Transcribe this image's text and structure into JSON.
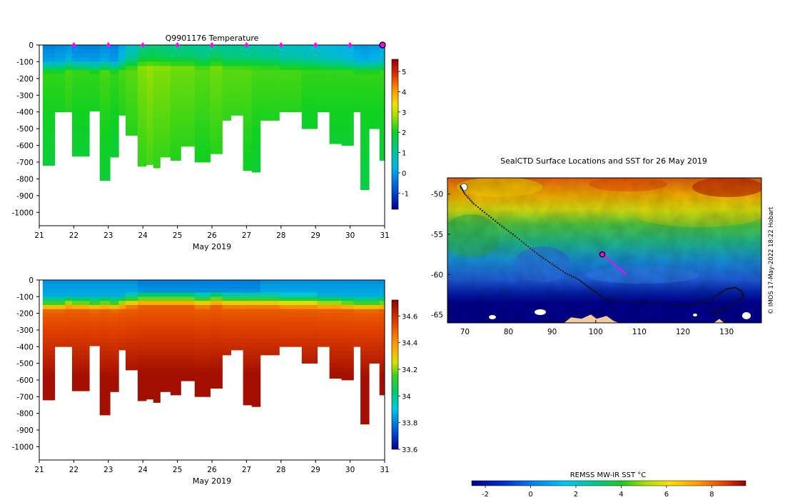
{
  "chart_data": [
    {
      "type": "heatmap",
      "title": "Q9901176  Temperature",
      "xlabel": "May 2019",
      "ylabel": "",
      "xlim": [
        21,
        31
      ],
      "ylim": [
        -1080,
        0
      ],
      "xticks": [
        "21",
        "22",
        "23",
        "24",
        "25",
        "26",
        "27",
        "28",
        "29",
        "30",
        "31"
      ],
      "yticks": [
        "0",
        "-100",
        "-200",
        "-300",
        "-400",
        "-500",
        "-600",
        "-700",
        "-800",
        "-900",
        "-1000"
      ],
      "colorbar": {
        "ticks": [
          "-1",
          "0",
          "1",
          "2",
          "3",
          "4",
          "5"
        ],
        "range": [
          -1.8,
          5.6
        ]
      },
      "surface_markers": [
        22,
        23,
        24,
        25,
        26,
        27,
        28,
        29,
        30
      ],
      "current_profile": 31,
      "profiles": [
        {
          "t": 21.1,
          "depth": 720,
          "surf": -0.3,
          "therm": 130,
          "deep": 1.9
        },
        {
          "t": 21.45,
          "depth": 400,
          "surf": -0.2,
          "therm": 130,
          "deep": 1.9
        },
        {
          "t": 21.75,
          "depth": 400,
          "surf": -0.1,
          "therm": 120,
          "deep": 2.0
        },
        {
          "t": 21.95,
          "depth": 665,
          "surf": -0.3,
          "therm": 125,
          "deep": 1.9
        },
        {
          "t": 22.45,
          "depth": 395,
          "surf": -0.3,
          "therm": 130,
          "deep": 1.9
        },
        {
          "t": 22.75,
          "depth": 810,
          "surf": -0.2,
          "therm": 125,
          "deep": 2.0
        },
        {
          "t": 23.05,
          "depth": 670,
          "surf": -0.3,
          "therm": 130,
          "deep": 1.9
        },
        {
          "t": 23.3,
          "depth": 420,
          "surf": 0.1,
          "therm": 120,
          "deep": 2.0
        },
        {
          "t": 23.5,
          "depth": 540,
          "surf": 0.6,
          "therm": 110,
          "deep": 2.1
        },
        {
          "t": 23.85,
          "depth": 725,
          "surf": 1.2,
          "therm": 100,
          "deep": 2.3
        },
        {
          "t": 24.1,
          "depth": 715,
          "surf": 1.3,
          "therm": 100,
          "deep": 2.4
        },
        {
          "t": 24.3,
          "depth": 735,
          "surf": 1.3,
          "therm": 100,
          "deep": 2.3
        },
        {
          "t": 24.5,
          "depth": 670,
          "surf": 1.2,
          "therm": 100,
          "deep": 2.3
        },
        {
          "t": 24.8,
          "depth": 690,
          "surf": 1.1,
          "therm": 100,
          "deep": 2.2
        },
        {
          "t": 25.1,
          "depth": 605,
          "surf": 1.1,
          "therm": 100,
          "deep": 2.2
        },
        {
          "t": 25.5,
          "depth": 700,
          "surf": 1.0,
          "therm": 110,
          "deep": 2.1
        },
        {
          "t": 25.95,
          "depth": 650,
          "surf": 1.1,
          "therm": 100,
          "deep": 2.2
        },
        {
          "t": 26.3,
          "depth": 450,
          "surf": 1.0,
          "therm": 110,
          "deep": 2.1
        },
        {
          "t": 26.55,
          "depth": 420,
          "surf": 1.0,
          "therm": 110,
          "deep": 2.1
        },
        {
          "t": 26.9,
          "depth": 750,
          "surf": 0.9,
          "therm": 110,
          "deep": 2.1
        },
        {
          "t": 27.15,
          "depth": 760,
          "surf": 0.9,
          "therm": 110,
          "deep": 2.0
        },
        {
          "t": 27.4,
          "depth": 450,
          "surf": 0.8,
          "therm": 110,
          "deep": 2.0
        },
        {
          "t": 27.95,
          "depth": 400,
          "surf": 0.6,
          "therm": 115,
          "deep": 2.0
        },
        {
          "t": 28.6,
          "depth": 500,
          "surf": 0.5,
          "therm": 115,
          "deep": 1.9
        },
        {
          "t": 29.05,
          "depth": 400,
          "surf": 0.4,
          "therm": 120,
          "deep": 1.9
        },
        {
          "t": 29.4,
          "depth": 590,
          "surf": 0.3,
          "therm": 120,
          "deep": 1.9
        },
        {
          "t": 29.75,
          "depth": 600,
          "surf": 0.2,
          "therm": 125,
          "deep": 1.9
        },
        {
          "t": 30.1,
          "depth": 400,
          "surf": 0.0,
          "therm": 130,
          "deep": 1.9
        },
        {
          "t": 30.3,
          "depth": 865,
          "surf": -0.1,
          "therm": 130,
          "deep": 1.9
        },
        {
          "t": 30.55,
          "depth": 500,
          "surf": 0.0,
          "therm": 130,
          "deep": 1.9
        },
        {
          "t": 30.85,
          "depth": 690,
          "surf": 0.1,
          "therm": 125,
          "deep": 1.9
        }
      ]
    },
    {
      "type": "heatmap",
      "title": "",
      "xlabel": "May 2019",
      "ylabel": "",
      "xlim": [
        21,
        31
      ],
      "ylim": [
        -1080,
        0
      ],
      "xticks": [
        "21",
        "22",
        "23",
        "24",
        "25",
        "26",
        "27",
        "28",
        "29",
        "30",
        "31"
      ],
      "yticks": [
        "0",
        "-100",
        "-200",
        "-300",
        "-400",
        "-500",
        "-600",
        "-700",
        "-800",
        "-900",
        "-1000"
      ],
      "colorbar": {
        "ticks": [
          "33.6",
          "33.8",
          "34",
          "34.2",
          "34.4",
          "34.6"
        ],
        "range": [
          33.6,
          34.72
        ]
      },
      "profiles_ref": "same profile times and depths as temperature panel"
    },
    {
      "type": "heatmap",
      "title": "SealCTD Surface Locations and SST for 26 May 2019",
      "xlabel": "",
      "ylabel": "",
      "xlim": [
        66,
        138
      ],
      "ylim": [
        -66,
        -48
      ],
      "xticks": [
        "70",
        "80",
        "90",
        "100",
        "110",
        "120",
        "130"
      ],
      "yticks": [
        "-50",
        "-55",
        "-60",
        "-65"
      ],
      "side_label": "© IMOS 17-May-2022 18:22 Hobart",
      "current_position": [
        101.5,
        -57.5
      ],
      "track": [
        [
          69,
          -49
        ],
        [
          70,
          -50
        ],
        [
          72,
          -51.2
        ],
        [
          75,
          -52.5
        ],
        [
          78,
          -53.8
        ],
        [
          81,
          -55
        ],
        [
          84,
          -56.3
        ],
        [
          87,
          -57.6
        ],
        [
          90,
          -58.7
        ],
        [
          93,
          -59.8
        ],
        [
          96,
          -60.6
        ],
        [
          98,
          -61.4
        ],
        [
          100,
          -62.2
        ],
        [
          102,
          -63
        ],
        [
          104,
          -63.2
        ],
        [
          108,
          -63.4
        ],
        [
          112,
          -63.5
        ],
        [
          116,
          -63.6
        ],
        [
          120,
          -63.8
        ],
        [
          123,
          -63.6
        ],
        [
          126,
          -63.2
        ],
        [
          128,
          -62.5
        ],
        [
          130,
          -61.8
        ],
        [
          132,
          -61.6
        ],
        [
          133.5,
          -62.1
        ],
        [
          134,
          -62.8
        ],
        [
          132,
          -63.6
        ],
        [
          130,
          -64.2
        ],
        [
          128,
          -64.6
        ],
        [
          126.5,
          -65
        ]
      ],
      "recent_track": [
        [
          101.5,
          -57.5
        ],
        [
          103,
          -58.2
        ],
        [
          104.5,
          -58.9
        ],
        [
          106,
          -59.5
        ],
        [
          107,
          -60
        ]
      ],
      "colorbar": {
        "label": "REMSS MW-IR SST °C",
        "ticks": [
          "-2",
          "0",
          "2",
          "4",
          "6",
          "8"
        ],
        "range": [
          -2.6,
          9.5
        ]
      }
    }
  ]
}
